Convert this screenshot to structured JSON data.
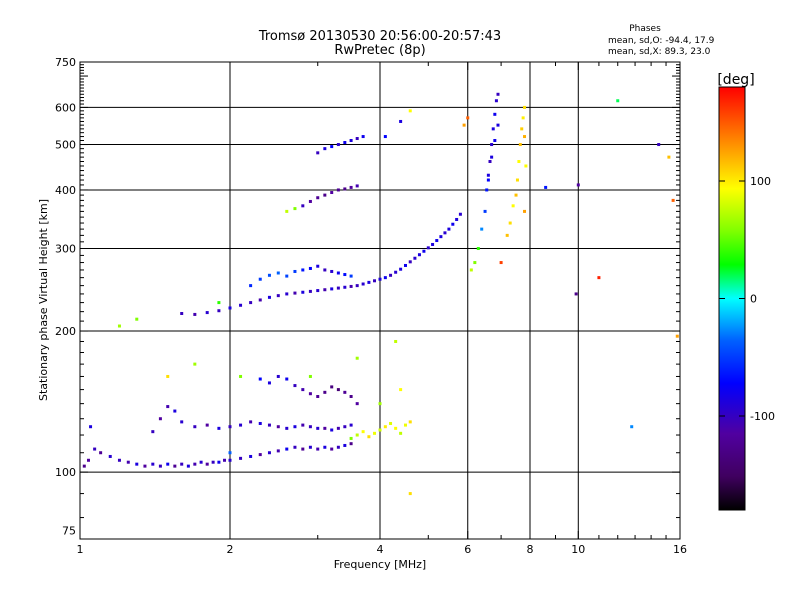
{
  "chart_data": {
    "type": "scatter",
    "title": "Tromsø 20130530 20:56:00-20:57:43",
    "subtitle": "RwPretec (8p)",
    "xlabel": "Frequency [MHz]",
    "ylabel": "Stationary phase Virtual Height [km]",
    "x_scale": "log",
    "y_scale": "log",
    "xlim": [
      1,
      16
    ],
    "ylim": [
      72,
      750
    ],
    "x_ticks": [
      1,
      2,
      4,
      6,
      8,
      10,
      16
    ],
    "x_tick_labels": [
      "1",
      "2",
      "4",
      "6",
      "8",
      "10",
      "16"
    ],
    "y_ticks": [
      75,
      100,
      200,
      300,
      400,
      500,
      600,
      750
    ],
    "y_tick_labels": [
      "75",
      "100",
      "200",
      "300",
      "400",
      "500",
      "600",
      "750"
    ],
    "grid": true,
    "annotation": {
      "heading": "Phases",
      "line1": "mean, sd,O: -94.4, 17.9",
      "line2": "mean, sd,X:  89.3, 23.0"
    },
    "colorbar": {
      "label": "[deg]",
      "range": [
        -180,
        180
      ],
      "ticks": [
        100,
        0,
        -100
      ],
      "tick_labels": [
        "100",
        "0",
        "-100"
      ],
      "colors": [
        "#000000",
        "#400060",
        "#5000a0",
        "#0000ff",
        "#0060ff",
        "#00ffff",
        "#00ff00",
        "#80ff00",
        "#ffff00",
        "#ff8000",
        "#ff0000"
      ]
    },
    "series": [
      {
        "points": [
          [
            1.02,
            103,
            -130
          ],
          [
            1.04,
            106,
            -120
          ],
          [
            1.07,
            112,
            -110
          ],
          [
            1.1,
            110,
            -125
          ],
          [
            1.15,
            108,
            -105
          ],
          [
            1.2,
            106,
            -110
          ],
          [
            1.25,
            105,
            -115
          ],
          [
            1.3,
            104,
            -100
          ],
          [
            1.35,
            103,
            -120
          ],
          [
            1.4,
            104,
            -105
          ],
          [
            1.45,
            103,
            -110
          ],
          [
            1.5,
            104,
            -95
          ],
          [
            1.55,
            103,
            -125
          ],
          [
            1.6,
            104,
            -110
          ],
          [
            1.65,
            103,
            -100
          ],
          [
            1.7,
            104,
            -115
          ],
          [
            1.75,
            105,
            -105
          ],
          [
            1.8,
            104,
            -120
          ],
          [
            1.85,
            105,
            -110
          ],
          [
            1.9,
            105,
            -95
          ],
          [
            1.95,
            106,
            -115
          ],
          [
            2.0,
            106,
            -105
          ],
          [
            2.1,
            107,
            -110
          ],
          [
            2.2,
            108,
            -100
          ],
          [
            2.3,
            109,
            -120
          ],
          [
            2.4,
            110,
            -105
          ],
          [
            2.5,
            111,
            -115
          ],
          [
            2.6,
            112,
            -95
          ],
          [
            2.7,
            113,
            -110
          ],
          [
            2.8,
            112,
            -125
          ],
          [
            2.9,
            113,
            -105
          ],
          [
            3.0,
            112,
            -115
          ],
          [
            3.1,
            113,
            -100
          ],
          [
            3.2,
            112,
            -120
          ],
          [
            3.3,
            113,
            -110
          ],
          [
            3.4,
            114,
            -100
          ],
          [
            3.5,
            115,
            -130
          ]
        ]
      },
      {
        "points": [
          [
            1.4,
            122,
            -110
          ],
          [
            1.45,
            130,
            -120
          ],
          [
            1.5,
            138,
            -115
          ],
          [
            1.55,
            135,
            -100
          ],
          [
            1.6,
            128,
            -105
          ],
          [
            1.7,
            125,
            -110
          ],
          [
            1.8,
            126,
            -120
          ],
          [
            1.9,
            124,
            -100
          ],
          [
            2.0,
            125,
            -110
          ],
          [
            2.1,
            126,
            -105
          ],
          [
            2.2,
            128,
            -115
          ],
          [
            2.3,
            127,
            -100
          ],
          [
            2.4,
            126,
            -110
          ],
          [
            2.5,
            125,
            -120
          ],
          [
            2.6,
            124,
            -105
          ],
          [
            2.7,
            125,
            -100
          ],
          [
            2.8,
            126,
            -115
          ],
          [
            2.9,
            125,
            -110
          ],
          [
            3.0,
            124,
            -105
          ],
          [
            3.1,
            124,
            -120
          ],
          [
            3.2,
            123,
            -100
          ],
          [
            3.3,
            124,
            -115
          ],
          [
            3.4,
            125,
            -110
          ],
          [
            3.5,
            126,
            -105
          ]
        ]
      },
      {
        "points": [
          [
            2.3,
            158,
            -90
          ],
          [
            2.4,
            155,
            -100
          ],
          [
            2.5,
            160,
            -105
          ],
          [
            2.6,
            158,
            -95
          ],
          [
            2.7,
            153,
            -110
          ],
          [
            2.8,
            150,
            -115
          ],
          [
            2.9,
            147,
            -120
          ],
          [
            3.0,
            145,
            -125
          ],
          [
            3.1,
            148,
            -130
          ],
          [
            3.2,
            152,
            -135
          ],
          [
            3.3,
            150,
            -140
          ],
          [
            3.4,
            148,
            -125
          ],
          [
            3.5,
            145,
            -130
          ],
          [
            3.6,
            140,
            -120
          ]
        ]
      },
      {
        "points": [
          [
            3.5,
            118,
            60
          ],
          [
            3.6,
            120,
            80
          ],
          [
            3.7,
            122,
            100
          ],
          [
            3.8,
            119,
            110
          ],
          [
            3.9,
            121,
            95
          ],
          [
            4.0,
            123,
            85
          ],
          [
            4.1,
            125,
            105
          ],
          [
            4.2,
            127,
            90
          ],
          [
            4.3,
            124,
            100
          ],
          [
            4.4,
            121,
            80
          ],
          [
            4.5,
            126,
            95
          ],
          [
            4.6,
            128,
            110
          ]
        ]
      },
      {
        "points": [
          [
            1.6,
            218,
            -110
          ],
          [
            1.7,
            217,
            -115
          ],
          [
            1.8,
            219,
            -105
          ],
          [
            1.9,
            221,
            -110
          ],
          [
            2.0,
            224,
            -100
          ],
          [
            2.1,
            227,
            -105
          ],
          [
            2.2,
            230,
            -110
          ],
          [
            2.3,
            233,
            -115
          ],
          [
            2.4,
            236,
            -100
          ],
          [
            2.5,
            238,
            -110
          ],
          [
            2.6,
            240,
            -105
          ],
          [
            2.7,
            241,
            -115
          ],
          [
            2.8,
            242,
            -100
          ],
          [
            2.9,
            243,
            -110
          ],
          [
            3.0,
            244,
            -105
          ],
          [
            3.1,
            245,
            -115
          ],
          [
            3.2,
            246,
            -100
          ],
          [
            3.3,
            247,
            -110
          ],
          [
            3.4,
            248,
            -105
          ],
          [
            3.5,
            249,
            -115
          ],
          [
            3.6,
            250,
            -110
          ],
          [
            3.7,
            252,
            -105
          ],
          [
            3.8,
            254,
            -100
          ],
          [
            3.9,
            256,
            -110
          ],
          [
            4.0,
            258,
            -100
          ],
          [
            4.1,
            260,
            -95
          ],
          [
            4.2,
            263,
            -110
          ],
          [
            4.3,
            267,
            -105
          ],
          [
            4.4,
            271,
            -100
          ],
          [
            4.5,
            276,
            -95
          ],
          [
            4.6,
            281,
            -110
          ],
          [
            4.7,
            286,
            -105
          ],
          [
            4.8,
            291,
            -100
          ],
          [
            4.9,
            296,
            -95
          ],
          [
            5.0,
            301,
            -105
          ],
          [
            5.1,
            306,
            -100
          ],
          [
            5.2,
            312,
            -95
          ],
          [
            5.3,
            318,
            -100
          ],
          [
            5.4,
            324,
            -105
          ],
          [
            5.5,
            330,
            -100
          ],
          [
            5.6,
            338,
            -95
          ],
          [
            5.7,
            346,
            -100
          ],
          [
            5.8,
            355,
            -105
          ]
        ]
      },
      {
        "points": [
          [
            2.2,
            250,
            -70
          ],
          [
            2.3,
            258,
            -60
          ],
          [
            2.4,
            263,
            -50
          ],
          [
            2.5,
            266,
            -40
          ],
          [
            2.6,
            262,
            -55
          ],
          [
            2.7,
            268,
            -60
          ],
          [
            2.8,
            270,
            -80
          ],
          [
            2.9,
            272,
            -90
          ],
          [
            3.0,
            275,
            -100
          ],
          [
            3.1,
            270,
            -110
          ],
          [
            3.2,
            268,
            -105
          ],
          [
            3.3,
            266,
            -95
          ],
          [
            3.4,
            264,
            -85
          ],
          [
            3.5,
            262,
            -60
          ]
        ]
      },
      {
        "points": [
          [
            2.6,
            360,
            80
          ],
          [
            2.7,
            365,
            60
          ],
          [
            2.8,
            370,
            -110
          ],
          [
            2.9,
            378,
            -120
          ],
          [
            3.0,
            385,
            -125
          ],
          [
            3.1,
            390,
            -130
          ],
          [
            3.2,
            395,
            -120
          ],
          [
            3.3,
            400,
            -125
          ],
          [
            3.4,
            402,
            -130
          ],
          [
            3.5,
            405,
            -120
          ],
          [
            3.6,
            408,
            -115
          ]
        ]
      },
      {
        "points": [
          [
            3.0,
            480,
            -110
          ],
          [
            3.1,
            490,
            -100
          ],
          [
            3.2,
            495,
            -90
          ],
          [
            3.3,
            500,
            -105
          ],
          [
            3.4,
            505,
            -95
          ],
          [
            3.5,
            510,
            -100
          ],
          [
            3.6,
            515,
            -110
          ],
          [
            3.7,
            520,
            -95
          ]
        ]
      },
      {
        "points": [
          [
            6.1,
            270,
            80
          ],
          [
            6.2,
            280,
            60
          ],
          [
            6.3,
            300,
            40
          ],
          [
            6.4,
            330,
            -30
          ],
          [
            6.5,
            360,
            -60
          ],
          [
            6.55,
            400,
            -80
          ],
          [
            6.6,
            430,
            -100
          ],
          [
            6.65,
            460,
            -110
          ],
          [
            6.7,
            500,
            -105
          ],
          [
            6.75,
            540,
            -100
          ],
          [
            6.8,
            580,
            -95
          ],
          [
            6.85,
            620,
            -105
          ],
          [
            6.9,
            640,
            -110
          ],
          [
            6.6,
            420,
            -90
          ],
          [
            6.7,
            470,
            -100
          ],
          [
            6.8,
            510,
            -95
          ],
          [
            6.9,
            550,
            -100
          ]
        ]
      },
      {
        "points": [
          [
            7.2,
            320,
            120
          ],
          [
            7.3,
            340,
            110
          ],
          [
            7.4,
            370,
            100
          ],
          [
            7.5,
            390,
            120
          ],
          [
            7.55,
            420,
            110
          ],
          [
            7.6,
            460,
            100
          ],
          [
            7.65,
            500,
            120
          ],
          [
            7.7,
            540,
            115
          ],
          [
            7.75,
            570,
            105
          ],
          [
            7.8,
            600,
            110
          ],
          [
            7.8,
            360,
            130
          ],
          [
            7.85,
            450,
            100
          ],
          [
            7.8,
            520,
            125
          ]
        ]
      },
      {
        "points": [
          [
            1.05,
            125,
            -100
          ],
          [
            1.2,
            205,
            70
          ],
          [
            1.3,
            212,
            60
          ],
          [
            1.5,
            160,
            110
          ],
          [
            1.7,
            170,
            70
          ],
          [
            1.9,
            230,
            40
          ],
          [
            2.1,
            160,
            60
          ],
          [
            2.9,
            160,
            60
          ],
          [
            3.6,
            175,
            70
          ],
          [
            4.3,
            190,
            80
          ],
          [
            4.4,
            150,
            100
          ],
          [
            4.6,
            90,
            110
          ],
          [
            4.1,
            520,
            -90
          ],
          [
            4.4,
            560,
            -100
          ],
          [
            4.6,
            590,
            100
          ],
          [
            5.9,
            550,
            130
          ],
          [
            6.0,
            570,
            150
          ],
          [
            7.0,
            280,
            160
          ],
          [
            8.6,
            405,
            -80
          ],
          [
            9.9,
            240,
            -130
          ],
          [
            10.0,
            410,
            -120
          ],
          [
            11.0,
            260,
            170
          ],
          [
            12.0,
            620,
            20
          ],
          [
            14.5,
            500,
            -110
          ],
          [
            15.2,
            470,
            120
          ],
          [
            15.5,
            380,
            150
          ],
          [
            15.8,
            195,
            130
          ],
          [
            12.8,
            125,
            -30
          ],
          [
            2.0,
            110,
            -40
          ],
          [
            4.0,
            140,
            70
          ]
        ]
      }
    ]
  }
}
